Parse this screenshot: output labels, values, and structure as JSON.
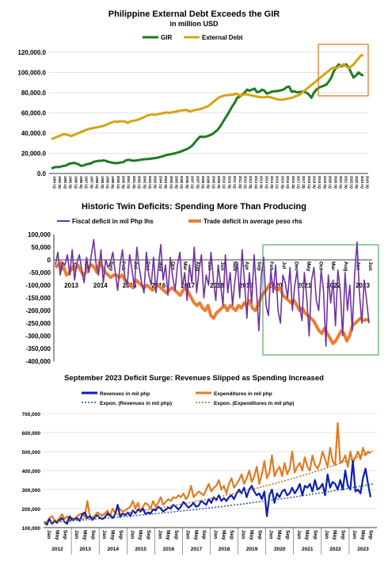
{
  "chart_data": [
    {
      "type": "line",
      "title": "Philippine External Debt Exceeds the GIR",
      "subtitle": "in million USD",
      "legend_placement": "top",
      "ylim": [
        0,
        120000
      ],
      "y_ticks": [
        "0.0",
        "20,000.0",
        "40,000.0",
        "60,000.0",
        "80,000.0",
        "100,000.0",
        "120,000.0"
      ],
      "x_labels": [
        "1994 1Q",
        "1994 3Q",
        "1995 1Q",
        "1995 3Q",
        "1996 1Q",
        "1996 3Q",
        "1997 1Q",
        "1997 3Q",
        "1998 1Q",
        "1998 3Q",
        "1999 1Q",
        "1999 3Q",
        "2000 1Q",
        "2000 3Q",
        "2001 1Q",
        "2001 3Q",
        "2002 1Q",
        "2002 3Q",
        "2003 1Q",
        "2003 3Q",
        "2004 1Q",
        "2004 3Q",
        "2005 1Q",
        "2005 3Q",
        "2006 1Q",
        "2006 3Q",
        "2007 1Q",
        "2007 3Q",
        "2008 1Q",
        "2008 3Q",
        "2009 1Q",
        "2009 3Q",
        "2010 1Q",
        "2010 3Q",
        "2011 1Q",
        "2011 3Q",
        "2012 1Q",
        "2012 3Q",
        "2013 1Q",
        "2013 3Q",
        "2014 1Q",
        "2014 3Q",
        "2015 1Q",
        "2015 3Q",
        "2016 1Q",
        "2016 3Q",
        "2017 1Q",
        "2017 3Q",
        "2018 1Q",
        "2018 3Q",
        "2019 1Q",
        "2019 3Q",
        "2020 1Q",
        "2020 3Q",
        "2021 1Q",
        "2021 3Q",
        "2022 1Q",
        "2022 3Q",
        "2023 1Q",
        "2023 3Q"
      ],
      "series": [
        {
          "name": "GIR",
          "color": "#1e7b1e",
          "values": [
            5000,
            6000,
            6500,
            6300,
            7000,
            7500,
            8000,
            9500,
            10000,
            10500,
            10000,
            9000,
            7500,
            8000,
            9000,
            9500,
            10000,
            11500,
            12000,
            12500,
            12500,
            13000,
            12500,
            11500,
            11000,
            10500,
            10200,
            10500,
            11000,
            11200,
            13000,
            13500,
            13200,
            12600,
            12800,
            13200,
            13500,
            14000,
            14200,
            14300,
            14600,
            15000,
            15300,
            15800,
            16500,
            17000,
            18000,
            18500,
            19000,
            19500,
            20000,
            20800,
            21500,
            22500,
            23500,
            24500,
            26000,
            28000,
            31000,
            34000,
            36500,
            36300,
            36300,
            37000,
            38000,
            39000,
            41000,
            43000,
            46000,
            50000,
            54000,
            58000,
            62000,
            66500,
            70000,
            75000,
            76000,
            78000,
            80000,
            83000,
            82000,
            83000,
            84000,
            80500,
            81000,
            83000,
            82000,
            79000,
            80000,
            81000,
            81500,
            81500,
            82000,
            82500,
            83500,
            85500,
            86000,
            81000,
            81500,
            80500,
            80500,
            81000,
            81000,
            80000,
            78000,
            75000,
            80000,
            83000,
            85000,
            86000,
            87000,
            88000,
            91000,
            95000,
            101000,
            105000,
            108000,
            106000,
            107000,
            108000,
            105000,
            100000,
            95000,
            97000,
            100000,
            98000,
            97000
          ]
        },
        {
          "name": "External Debt",
          "color": "#d4a413",
          "values": [
            34000,
            35000,
            36000,
            37000,
            38000,
            39000,
            38500,
            38000,
            37000,
            38000,
            39000,
            40000,
            41000,
            42000,
            43000,
            44000,
            44500,
            45000,
            45500,
            46000,
            46500,
            47000,
            48000,
            49000,
            50000,
            51000,
            51500,
            51000,
            52000,
            51500,
            51500,
            50000,
            51500,
            52000,
            52500,
            53000,
            54000,
            55000,
            56000,
            57500,
            58000,
            58500,
            58000,
            58500,
            59000,
            59500,
            60000,
            60500,
            60000,
            60500,
            61000,
            61500,
            62000,
            62500,
            62500,
            63000,
            61500,
            62000,
            62500,
            63000,
            63500,
            64000,
            65000,
            66000,
            67000,
            69000,
            71000,
            73000,
            75000,
            76000,
            77000,
            77500,
            77500,
            78000,
            78000,
            79000,
            78000,
            77000,
            78000,
            78500,
            78000,
            77500,
            77000,
            76500,
            76000,
            75500,
            75500,
            75500,
            76000,
            75500,
            75000,
            74000,
            73500,
            73000,
            73000,
            73500,
            74000,
            74500,
            75000,
            76000,
            77000,
            78000,
            80000,
            82000,
            84000,
            86000,
            88000,
            90000,
            92000,
            94000,
            96000,
            98000,
            100000,
            102000,
            104000,
            105000,
            104000,
            106000,
            107000,
            108000,
            106000,
            104000,
            106000,
            108000,
            111000,
            114000,
            117000,
            117000
          ]
        }
      ],
      "annotation": "orange box highlighting 2020-2023"
    },
    {
      "type": "line",
      "title": "Historic Twin Deficits: Spending More Than Producing",
      "legend_placement": "top",
      "ylim": [
        -400000,
        100000
      ],
      "y_ticks": [
        "100,000",
        "50,000",
        "0",
        "-50,000",
        "-100,000",
        "-150,000",
        "-200,000",
        "-250,000",
        "-300,000",
        "-350,000",
        "-400,000"
      ],
      "month_labels": [
        "Jan",
        "Jun",
        "Nov",
        "Apr",
        "Sep",
        "Feb",
        "Jul",
        "Dec",
        "May",
        "Oct",
        "Mar",
        "Aug",
        "Jan",
        "Jun",
        "Nov",
        "Apr",
        "Sep",
        "Feb",
        "Jul",
        "Dec",
        "May",
        "Oct",
        "Mar",
        "Aug",
        "Jan",
        "Jun"
      ],
      "year_labels": [
        "2013",
        "2014",
        "2015",
        "2016",
        "2017",
        "2018",
        "2019",
        "2020",
        "2021",
        "2022",
        "2023"
      ],
      "series": [
        {
          "name": "Fiscal deficit in mil Php lhs",
          "color": "#7030a0",
          "values": [
            -20000,
            30000,
            -60000,
            -10000,
            -20000,
            20000,
            -60000,
            40000,
            -80000,
            -10000,
            20000,
            -40000,
            -90000,
            10000,
            -50000,
            20000,
            80000,
            -20000,
            -60000,
            40000,
            -90000,
            0,
            -30000,
            -10000,
            30000,
            -50000,
            -120000,
            -20000,
            40000,
            -70000,
            -100000,
            20000,
            -40000,
            -110000,
            50000,
            -30000,
            -90000,
            -130000,
            30000,
            -60000,
            -100000,
            10000,
            -130000,
            -30000,
            60000,
            -80000,
            -20000,
            -140000,
            10000,
            -70000,
            -120000,
            -20000,
            30000,
            -110000,
            -50000,
            -160000,
            -20000,
            -90000,
            50000,
            -130000,
            -40000,
            20000,
            -150000,
            -60000,
            -100000,
            30000,
            -80000,
            -160000,
            -20000,
            -100000,
            -180000,
            20000,
            -130000,
            -50000,
            -180000,
            -80000,
            -10000,
            -150000,
            40000,
            -90000,
            -230000,
            -50000,
            -170000,
            20000,
            -120000,
            -280000,
            -60000,
            10000,
            -180000,
            -220000,
            -40000,
            -130000,
            -20000,
            -200000,
            -250000,
            -60000,
            -90000,
            -150000,
            -30000,
            -200000,
            -100000,
            -40000,
            -180000,
            -240000,
            -50000,
            -150000,
            -300000,
            -80000,
            -30000,
            -160000,
            -200000,
            -40000,
            -120000,
            -340000,
            -60000,
            -170000,
            -80000,
            -260000,
            -40000,
            -120000,
            -300000,
            -50000,
            -200000,
            -100000,
            -280000,
            -60000,
            70000,
            -130000,
            -250000,
            -80000,
            -160000,
            -250000
          ]
        },
        {
          "name": "Trade deficit in average peso rhs",
          "color": "#ed7d31",
          "values": [
            -30000,
            -20000,
            -10000,
            -30000,
            -60000,
            -50000,
            -30000,
            -40000,
            -20000,
            -40000,
            -60000,
            -50000,
            -30000,
            -20000,
            -30000,
            -50000,
            -10000,
            -30000,
            -50000,
            -60000,
            -70000,
            -60000,
            -60000,
            -70000,
            -60000,
            -80000,
            -90000,
            -100000,
            -110000,
            -80000,
            -90000,
            -100000,
            -110000,
            -100000,
            -110000,
            -120000,
            -110000,
            -100000,
            -110000,
            -120000,
            -130000,
            -120000,
            -110000,
            -120000,
            -130000,
            -140000,
            -120000,
            -110000,
            -130000,
            -150000,
            -170000,
            -180000,
            -170000,
            -190000,
            -200000,
            -180000,
            -220000,
            -230000,
            -210000,
            -200000,
            -190000,
            -180000,
            -200000,
            -180000,
            -190000,
            -200000,
            -180000,
            -190000,
            -170000,
            -180000,
            -160000,
            -190000,
            -200000,
            -180000,
            -150000,
            -130000,
            -120000,
            -100000,
            -90000,
            -110000,
            -120000,
            -110000,
            -140000,
            -150000,
            -160000,
            -170000,
            -160000,
            -180000,
            -200000,
            -190000,
            -210000,
            -220000,
            -230000,
            -240000,
            -260000,
            -280000,
            -290000,
            -270000,
            -290000,
            -310000,
            -330000,
            -320000,
            -300000,
            -280000,
            -290000,
            -320000,
            -300000,
            -260000,
            -250000,
            -240000,
            -230000,
            -240000,
            -235000,
            -240000
          ]
        }
      ],
      "annotation": "green box highlighting 2020-2023"
    },
    {
      "type": "line",
      "title": "September 2023 Deficit Surge: Revenues Slipped as Spending Increased",
      "legend_placement": "top",
      "ylim": [
        100000,
        700000
      ],
      "y_ticks": [
        "100,000",
        "200,000",
        "300,000",
        "400,000",
        "500,000",
        "600,000",
        "700,000"
      ],
      "month_labels": [
        "Jan",
        "May",
        "Sep"
      ],
      "year_labels": [
        "2012",
        "2013",
        "2014",
        "2015",
        "2016",
        "2017",
        "2018",
        "2019",
        "2020",
        "2021",
        "2022",
        "2023"
      ],
      "series": [
        {
          "name": "Revenues in mil php",
          "color": "#0a1fb0",
          "values": [
            130000,
            115000,
            145000,
            120000,
            135000,
            125000,
            140000,
            150000,
            130000,
            120000,
            160000,
            140000,
            145000,
            150000,
            135000,
            170000,
            180000,
            150000,
            160000,
            140000,
            155000,
            165000,
            150000,
            145000,
            155000,
            175000,
            165000,
            150000,
            170000,
            220000,
            155000,
            175000,
            165000,
            180000,
            160000,
            190000,
            175000,
            195000,
            185000,
            200000,
            170000,
            180000,
            175000,
            195000,
            190000,
            210000,
            200000,
            185000,
            195000,
            205000,
            200000,
            220000,
            210000,
            195000,
            210000,
            235000,
            220000,
            205000,
            215000,
            230000,
            210000,
            215000,
            240000,
            230000,
            220000,
            250000,
            230000,
            260000,
            245000,
            270000,
            240000,
            255000,
            240000,
            260000,
            270000,
            250000,
            280000,
            300000,
            280000,
            310000,
            260000,
            300000,
            320000,
            290000,
            270000,
            280000,
            250000,
            290000,
            160000,
            270000,
            300000,
            230000,
            280000,
            260000,
            290000,
            300000,
            270000,
            280000,
            310000,
            280000,
            300000,
            330000,
            270000,
            320000,
            310000,
            330000,
            290000,
            350000,
            300000,
            310000,
            330000,
            270000,
            380000,
            310000,
            340000,
            330000,
            300000,
            350000,
            300000,
            400000,
            320000,
            300000,
            450000,
            290000,
            300000,
            280000,
            360000,
            410000,
            330000,
            260000
          ]
        },
        {
          "name": "Expenditures in mil php",
          "color": "#e07b22",
          "values": [
            120000,
            130000,
            150000,
            160000,
            140000,
            135000,
            150000,
            170000,
            145000,
            160000,
            135000,
            150000,
            145000,
            160000,
            170000,
            175000,
            155000,
            240000,
            160000,
            150000,
            165000,
            180000,
            170000,
            165000,
            175000,
            190000,
            160000,
            200000,
            175000,
            210000,
            195000,
            185000,
            190000,
            200000,
            210000,
            240000,
            200000,
            230000,
            185000,
            210000,
            230000,
            220000,
            200000,
            240000,
            210000,
            230000,
            260000,
            220000,
            235000,
            250000,
            240000,
            260000,
            255000,
            270000,
            260000,
            280000,
            250000,
            270000,
            320000,
            260000,
            275000,
            290000,
            280000,
            270000,
            300000,
            330000,
            290000,
            310000,
            320000,
            350000,
            300000,
            320000,
            280000,
            330000,
            360000,
            310000,
            330000,
            350000,
            380000,
            330000,
            360000,
            400000,
            340000,
            370000,
            420000,
            330000,
            380000,
            450000,
            360000,
            390000,
            480000,
            370000,
            400000,
            420000,
            370000,
            440000,
            380000,
            410000,
            500000,
            390000,
            420000,
            440000,
            400000,
            470000,
            420000,
            400000,
            480000,
            430000,
            410000,
            440000,
            500000,
            460000,
            420000,
            520000,
            450000,
            430000,
            650000,
            440000,
            450000,
            480000,
            420000,
            500000,
            440000,
            470000,
            500000,
            460000,
            520000,
            480000,
            500000,
            490000
          ]
        },
        {
          "name": "Expon. (Revenues in mil php)",
          "color": "#1f4e9c",
          "style": "dotted",
          "from": 125000,
          "to": 330000
        },
        {
          "name": "Expon. (Expenditures in mil php)",
          "color": "#b5651d",
          "style": "dotted",
          "from": 125000,
          "to": 505000
        }
      ]
    }
  ]
}
